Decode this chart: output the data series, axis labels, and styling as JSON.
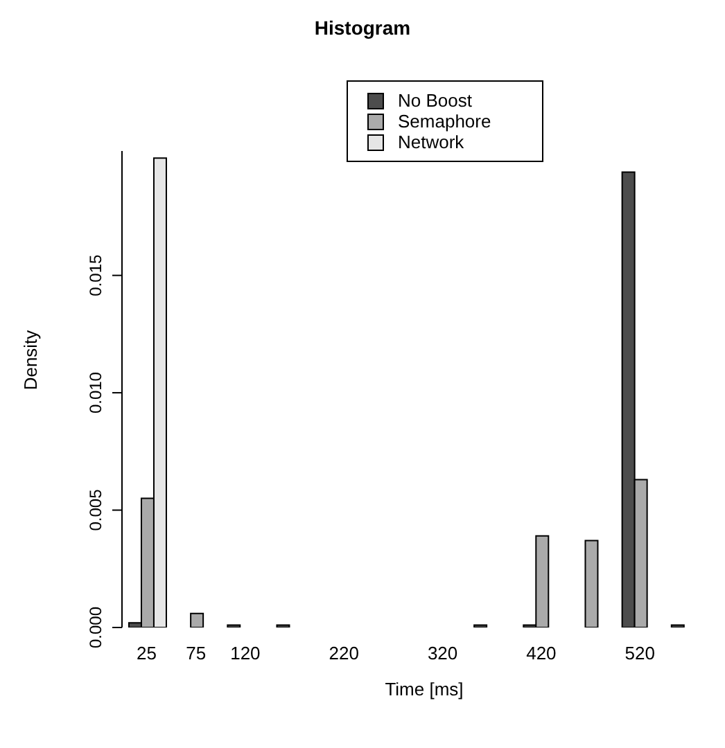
{
  "chart_data": {
    "type": "bar",
    "title": "Histogram",
    "xlabel": "Time [ms]",
    "ylabel": "Density",
    "categories": [
      "25",
      "75",
      "120",
      null,
      "220",
      null,
      "320",
      null,
      "420",
      null,
      "520",
      null
    ],
    "series": [
      {
        "name": "No Boost",
        "color": "#4d4d4d",
        "values": [
          0.0002,
          0,
          0.0001,
          0.0001,
          0,
          0,
          0,
          0.0001,
          0.0001,
          0,
          0.0194,
          0.0001
        ]
      },
      {
        "name": "Semaphore",
        "color": "#aaaaaa",
        "values": [
          0.0055,
          0.0006,
          0,
          0,
          0,
          0,
          0,
          0,
          0.0039,
          0.0037,
          0.0063,
          0
        ]
      },
      {
        "name": "Network",
        "color": "#e6e6e6",
        "values": [
          0.02,
          0,
          0,
          0,
          0,
          0,
          0,
          0,
          0,
          0,
          0,
          0
        ]
      }
    ],
    "ylim": [
      0,
      0.0203
    ],
    "yticks": [
      {
        "value": 0,
        "label": "0.000"
      },
      {
        "value": 0.005,
        "label": "0.005"
      },
      {
        "value": 0.01,
        "label": "0.010"
      },
      {
        "value": 0.015,
        "label": "0.015"
      }
    ],
    "legend": "top",
    "grid": false
  }
}
